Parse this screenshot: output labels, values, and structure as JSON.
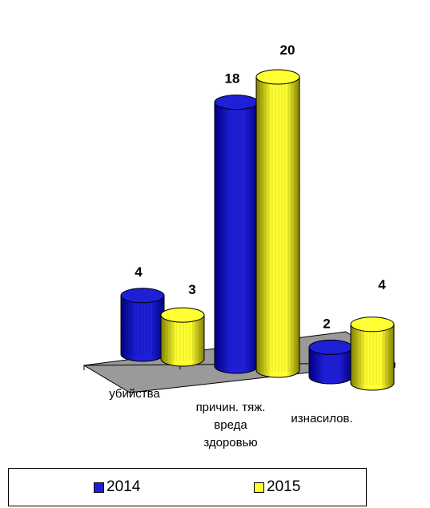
{
  "chart_data": {
    "type": "bar",
    "categories": [
      "убийства",
      "причин. тяж. вреда здоровью",
      "изнасилов."
    ],
    "category_lines": [
      [
        "убийства"
      ],
      [
        "причин. тяж.",
        "вреда",
        "здоровью"
      ],
      [
        "изнасилов."
      ]
    ],
    "series": [
      {
        "name": "2014",
        "values": [
          4,
          18,
          2
        ],
        "color": "#1f1fd6",
        "edge": "#000080"
      },
      {
        "name": "2015",
        "values": [
          3,
          20,
          4
        ],
        "color": "#ffff33",
        "edge": "#808000"
      }
    ],
    "floor_color": "#9a9a9a",
    "bar_shape": "cylinder",
    "legend_position": "bottom",
    "grid": false
  }
}
